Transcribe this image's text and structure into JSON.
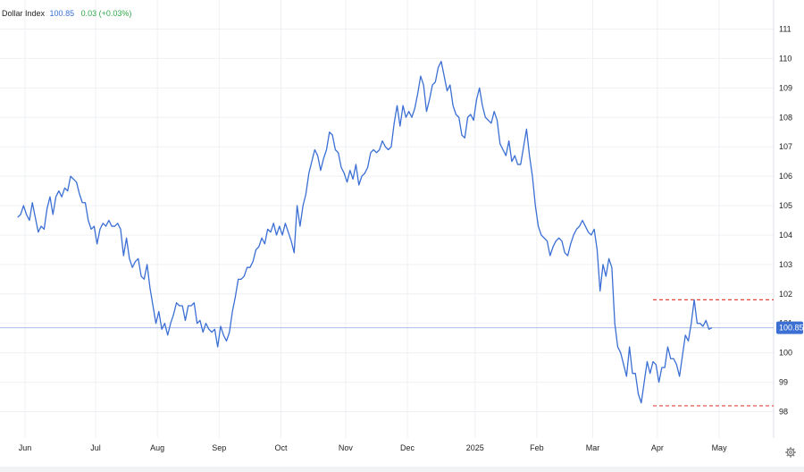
{
  "header": {
    "name": "Dollar Index",
    "value": "100.85",
    "change": "0.03 (+0.03%)"
  },
  "last_price_label": "100.85",
  "settings_icon": "gear-icon",
  "colors": {
    "line": "#3b6fd4",
    "price_tag": "#3b6fd4",
    "change_positive": "#2fa84a",
    "level_line": "#e0463a",
    "grid": "#eef0f3"
  },
  "chart_data": {
    "type": "line",
    "title": "",
    "xlabel": "",
    "ylabel": "",
    "ylim": [
      97.0,
      112.0
    ],
    "grid": true,
    "y_ticks": [
      "98",
      "99",
      "100",
      "101",
      "102",
      "103",
      "104",
      "105",
      "106",
      "107",
      "108",
      "109",
      "110",
      "111"
    ],
    "x_ticks": [
      {
        "label": "Jun",
        "x": 2.5
      },
      {
        "label": "Jul",
        "x": 26.5
      },
      {
        "label": "Aug",
        "x": 47.5
      },
      {
        "label": "Sep",
        "x": 68.5
      },
      {
        "label": "Oct",
        "x": 89.5
      },
      {
        "label": "Nov",
        "x": 111.5
      },
      {
        "label": "Dec",
        "x": 132.5
      },
      {
        "label": "2025",
        "x": 155.5
      },
      {
        "label": "Feb",
        "x": 176.5
      },
      {
        "label": "Mar",
        "x": 195.5
      },
      {
        "label": "Apr",
        "x": 217.5
      },
      {
        "label": "May",
        "x": 238.5
      }
    ],
    "x_range": [
      -6,
      257
    ],
    "series": [
      {
        "values": [
          [
            0,
            104.6
          ],
          [
            1,
            104.7
          ],
          [
            2,
            105.0
          ],
          [
            3,
            104.7
          ],
          [
            4,
            104.5
          ],
          [
            5,
            105.1
          ],
          [
            6,
            104.6
          ],
          [
            7,
            104.1
          ],
          [
            8,
            104.3
          ],
          [
            9,
            104.2
          ],
          [
            10,
            104.9
          ],
          [
            11,
            105.3
          ],
          [
            12,
            104.7
          ],
          [
            13,
            105.3
          ],
          [
            14,
            105.5
          ],
          [
            15,
            105.3
          ],
          [
            16,
            105.6
          ],
          [
            17,
            105.5
          ],
          [
            18,
            106.0
          ],
          [
            19,
            105.9
          ],
          [
            20,
            105.8
          ],
          [
            21,
            105.4
          ],
          [
            22,
            105.1
          ],
          [
            23,
            105.1
          ],
          [
            24,
            104.5
          ],
          [
            25,
            104.2
          ],
          [
            26,
            104.3
          ],
          [
            27,
            103.7
          ],
          [
            28,
            104.2
          ],
          [
            29,
            104.4
          ],
          [
            30,
            104.3
          ],
          [
            31,
            104.5
          ],
          [
            32,
            104.3
          ],
          [
            33,
            104.3
          ],
          [
            34,
            104.4
          ],
          [
            35,
            104.2
          ],
          [
            36,
            103.3
          ],
          [
            37,
            103.9
          ],
          [
            38,
            103.2
          ],
          [
            39,
            102.9
          ],
          [
            40,
            103.1
          ],
          [
            41,
            103.2
          ],
          [
            42,
            102.6
          ],
          [
            43,
            102.5
          ],
          [
            44,
            103.0
          ],
          [
            45,
            102.2
          ],
          [
            46,
            101.6
          ],
          [
            47,
            101.0
          ],
          [
            48,
            101.4
          ],
          [
            49,
            100.8
          ],
          [
            50,
            101.0
          ],
          [
            51,
            100.6
          ],
          [
            52,
            101.0
          ],
          [
            53,
            101.3
          ],
          [
            54,
            101.7
          ],
          [
            55,
            101.6
          ],
          [
            56,
            101.6
          ],
          [
            57,
            101.1
          ],
          [
            58,
            101.6
          ],
          [
            59,
            101.6
          ],
          [
            60,
            101.7
          ],
          [
            61,
            101.0
          ],
          [
            62,
            101.1
          ],
          [
            63,
            100.7
          ],
          [
            64,
            101.0
          ],
          [
            65,
            100.8
          ],
          [
            66,
            100.7
          ],
          [
            67,
            100.8
          ],
          [
            68,
            100.2
          ],
          [
            69,
            100.9
          ],
          [
            70,
            100.6
          ],
          [
            71,
            100.4
          ],
          [
            72,
            100.7
          ],
          [
            73,
            101.4
          ],
          [
            74,
            101.9
          ],
          [
            75,
            102.5
          ],
          [
            76,
            102.5
          ],
          [
            77,
            102.6
          ],
          [
            78,
            102.9
          ],
          [
            79,
            102.9
          ],
          [
            80,
            103.1
          ],
          [
            81,
            103.5
          ],
          [
            82,
            103.6
          ],
          [
            83,
            103.9
          ],
          [
            84,
            103.7
          ],
          [
            85,
            104.2
          ],
          [
            86,
            104.1
          ],
          [
            87,
            104.4
          ],
          [
            88,
            104.0
          ],
          [
            89,
            104.3
          ],
          [
            90,
            104.0
          ],
          [
            91,
            104.4
          ],
          [
            92,
            104.1
          ],
          [
            93,
            103.8
          ],
          [
            94,
            103.4
          ],
          [
            95,
            105.0
          ],
          [
            96,
            104.3
          ],
          [
            97,
            105.0
          ],
          [
            98,
            105.4
          ],
          [
            99,
            106.1
          ],
          [
            100,
            106.5
          ],
          [
            101,
            106.9
          ],
          [
            102,
            106.7
          ],
          [
            103,
            106.2
          ],
          [
            104,
            106.6
          ],
          [
            105,
            106.9
          ],
          [
            106,
            107.5
          ],
          [
            107,
            107.4
          ],
          [
            108,
            106.9
          ],
          [
            109,
            106.8
          ],
          [
            110,
            106.3
          ],
          [
            111,
            106.1
          ],
          [
            112,
            105.8
          ],
          [
            113,
            106.2
          ],
          [
            114,
            105.9
          ],
          [
            115,
            106.4
          ],
          [
            116,
            105.7
          ],
          [
            117,
            106.0
          ],
          [
            118,
            106.1
          ],
          [
            119,
            106.3
          ],
          [
            120,
            106.8
          ],
          [
            121,
            106.9
          ],
          [
            122,
            106.8
          ],
          [
            123,
            106.9
          ],
          [
            124,
            107.2
          ],
          [
            125,
            107.0
          ],
          [
            126,
            106.9
          ],
          [
            127,
            107.0
          ],
          [
            128,
            107.8
          ],
          [
            129,
            108.4
          ],
          [
            130,
            107.7
          ],
          [
            131,
            108.4
          ],
          [
            132,
            108.0
          ],
          [
            133,
            108.2
          ],
          [
            134,
            108.0
          ],
          [
            135,
            108.3
          ],
          [
            136,
            108.8
          ],
          [
            137,
            109.4
          ],
          [
            138,
            109.1
          ],
          [
            139,
            108.2
          ],
          [
            140,
            108.6
          ],
          [
            141,
            109.1
          ],
          [
            142,
            109.2
          ],
          [
            143,
            109.7
          ],
          [
            144,
            109.9
          ],
          [
            145,
            109.4
          ],
          [
            146,
            108.9
          ],
          [
            147,
            109.1
          ],
          [
            148,
            108.4
          ],
          [
            149,
            108.1
          ],
          [
            150,
            108.0
          ],
          [
            151,
            107.4
          ],
          [
            152,
            107.3
          ],
          [
            153,
            108.0
          ],
          [
            154,
            108.1
          ],
          [
            155,
            107.9
          ],
          [
            156,
            108.6
          ],
          [
            157,
            109.0
          ],
          [
            158,
            108.4
          ],
          [
            159,
            108.0
          ],
          [
            160,
            107.9
          ],
          [
            161,
            107.8
          ],
          [
            162,
            108.2
          ],
          [
            163,
            107.9
          ],
          [
            164,
            107.1
          ],
          [
            165,
            106.9
          ],
          [
            166,
            106.7
          ],
          [
            167,
            107.2
          ],
          [
            168,
            106.5
          ],
          [
            169,
            106.7
          ],
          [
            170,
            106.4
          ],
          [
            171,
            106.4
          ],
          [
            172,
            107.0
          ],
          [
            173,
            107.6
          ],
          [
            174,
            106.7
          ],
          [
            175,
            106.0
          ],
          [
            176,
            105.0
          ],
          [
            177,
            104.3
          ],
          [
            178,
            104.0
          ],
          [
            179,
            103.9
          ],
          [
            180,
            103.8
          ],
          [
            181,
            103.3
          ],
          [
            182,
            103.6
          ],
          [
            183,
            103.8
          ],
          [
            184,
            103.9
          ],
          [
            185,
            103.8
          ],
          [
            186,
            103.4
          ],
          [
            187,
            103.3
          ],
          [
            188,
            103.7
          ],
          [
            189,
            104.0
          ],
          [
            190,
            104.2
          ],
          [
            191,
            104.3
          ],
          [
            192,
            104.5
          ],
          [
            193,
            104.3
          ],
          [
            194,
            104.1
          ],
          [
            195,
            104.0
          ],
          [
            196,
            104.2
          ],
          [
            197,
            103.5
          ],
          [
            198,
            102.1
          ],
          [
            199,
            103.0
          ],
          [
            200,
            102.6
          ],
          [
            201,
            103.2
          ],
          [
            202,
            102.9
          ],
          [
            203,
            101.0
          ],
          [
            204,
            100.2
          ],
          [
            205,
            100.0
          ],
          [
            206,
            99.6
          ],
          [
            207,
            99.2
          ],
          [
            208,
            100.2
          ],
          [
            209,
            99.3
          ],
          [
            210,
            99.3
          ],
          [
            211,
            98.6
          ],
          [
            212,
            98.3
          ],
          [
            213,
            99.0
          ],
          [
            214,
            99.7
          ],
          [
            215,
            99.3
          ],
          [
            216,
            99.7
          ],
          [
            217,
            99.6
          ],
          [
            218,
            99.0
          ],
          [
            219,
            99.5
          ],
          [
            220,
            99.5
          ],
          [
            221,
            100.2
          ],
          [
            222,
            99.8
          ],
          [
            223,
            99.8
          ],
          [
            224,
            99.6
          ],
          [
            225,
            99.2
          ],
          [
            226,
            99.9
          ],
          [
            227,
            100.6
          ],
          [
            228,
            100.4
          ],
          [
            229,
            101.0
          ],
          [
            230,
            101.8
          ],
          [
            231,
            101.0
          ],
          [
            232,
            101.0
          ],
          [
            233,
            100.9
          ],
          [
            234,
            101.1
          ],
          [
            235,
            100.8
          ],
          [
            236,
            100.85
          ]
        ]
      }
    ],
    "last_value": 100.85,
    "level_lines": [
      {
        "y": 101.8,
        "x_start": 216
      },
      {
        "y": 98.2,
        "x_start": 216
      }
    ]
  }
}
